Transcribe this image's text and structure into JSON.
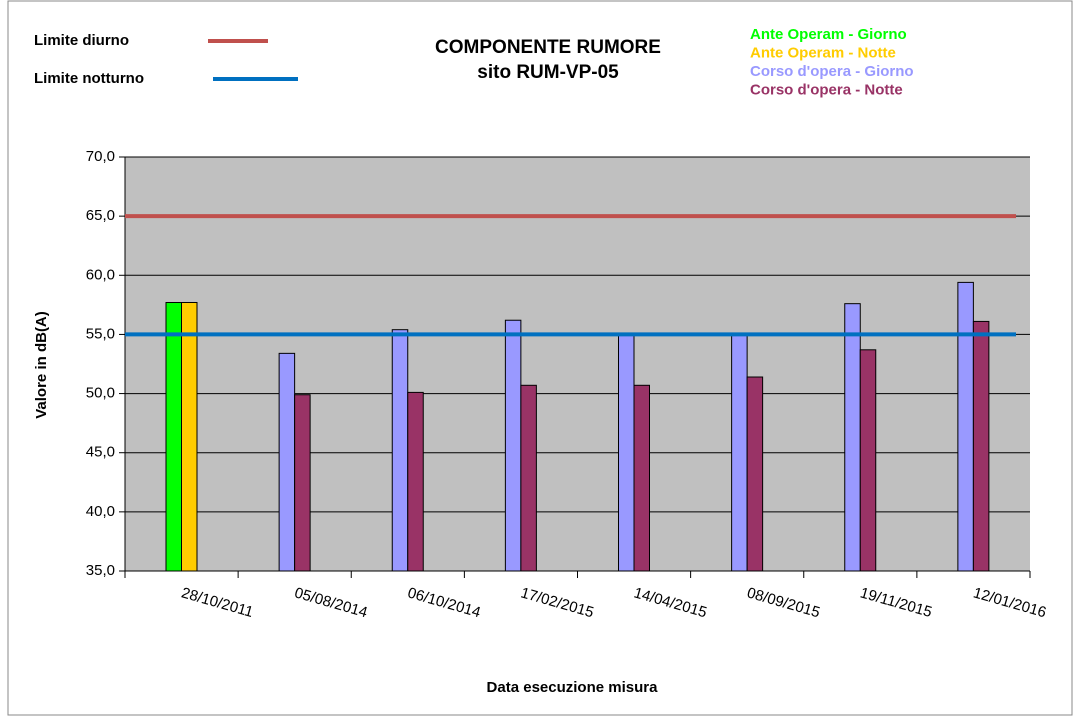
{
  "chart_data": {
    "type": "bar",
    "title": "COMPONENTE RUMORE",
    "subtitle": "sito RUM-VP-05",
    "y_label": "Valore in dB(A)",
    "x_label": "Data esecuzione misura",
    "categories": [
      "28/10/2011",
      "05/08/2014",
      "06/10/2014",
      "17/02/2015",
      "14/04/2015",
      "08/09/2015",
      "19/11/2015",
      "12/01/2016"
    ],
    "series": [
      {
        "name": "Ante Operam - Giorno",
        "color": "#00ff00",
        "values": [
          57.7,
          null,
          null,
          null,
          null,
          null,
          null,
          null
        ]
      },
      {
        "name": "Ante Operam - Notte",
        "color": "#ffcc00",
        "values": [
          57.7,
          null,
          null,
          null,
          null,
          null,
          null,
          null
        ]
      },
      {
        "name": "Corso d'opera - Giorno",
        "color": "#9999ff",
        "values": [
          null,
          53.4,
          55.4,
          56.2,
          55.0,
          55.0,
          57.6,
          59.4
        ]
      },
      {
        "name": "Corso d'opera - Notte",
        "color": "#993366",
        "values": [
          null,
          49.9,
          50.1,
          50.7,
          50.7,
          51.4,
          53.7,
          56.1
        ]
      }
    ],
    "limits": [
      {
        "name": "Limite diurno",
        "color": "#c0504d",
        "value": 65
      },
      {
        "name": "Limite notturno",
        "color": "#0070c0",
        "value": 55
      }
    ],
    "ylim": [
      35,
      70
    ],
    "yticks": [
      {
        "value": 35,
        "label": "35,0"
      },
      {
        "value": 40,
        "label": "40,0"
      },
      {
        "value": 45,
        "label": "45,0"
      },
      {
        "value": 50,
        "label": "50,0"
      },
      {
        "value": 55,
        "label": "55,0"
      },
      {
        "value": 60,
        "label": "60,0"
      },
      {
        "value": 65,
        "label": "65,0"
      },
      {
        "value": 70,
        "label": "70,0"
      }
    ],
    "grid": true
  }
}
